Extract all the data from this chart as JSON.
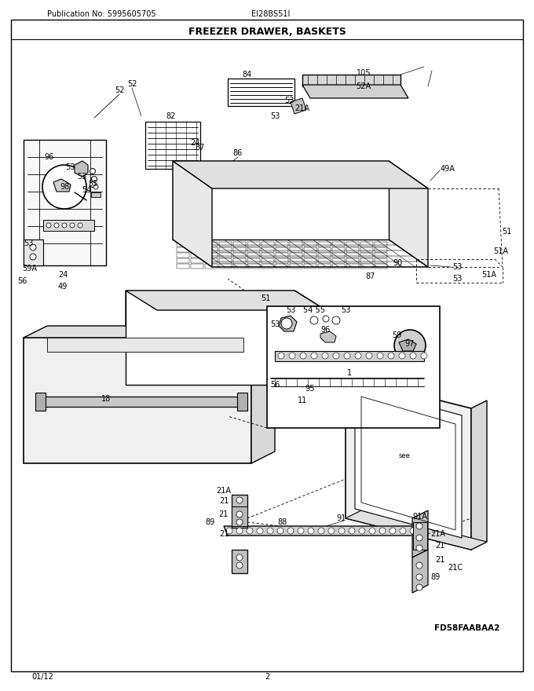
{
  "title": "FREEZER DRAWER, BASKETS",
  "pub_no": "Publication No: 5995605705",
  "model": "EI28BS51I",
  "date": "01/12",
  "page": "2",
  "diagram_id": "FD58FAABAA2",
  "bg_color": "#ffffff",
  "line_color": "#000000",
  "fig_width": 6.8,
  "fig_height": 8.8,
  "dpi": 100
}
